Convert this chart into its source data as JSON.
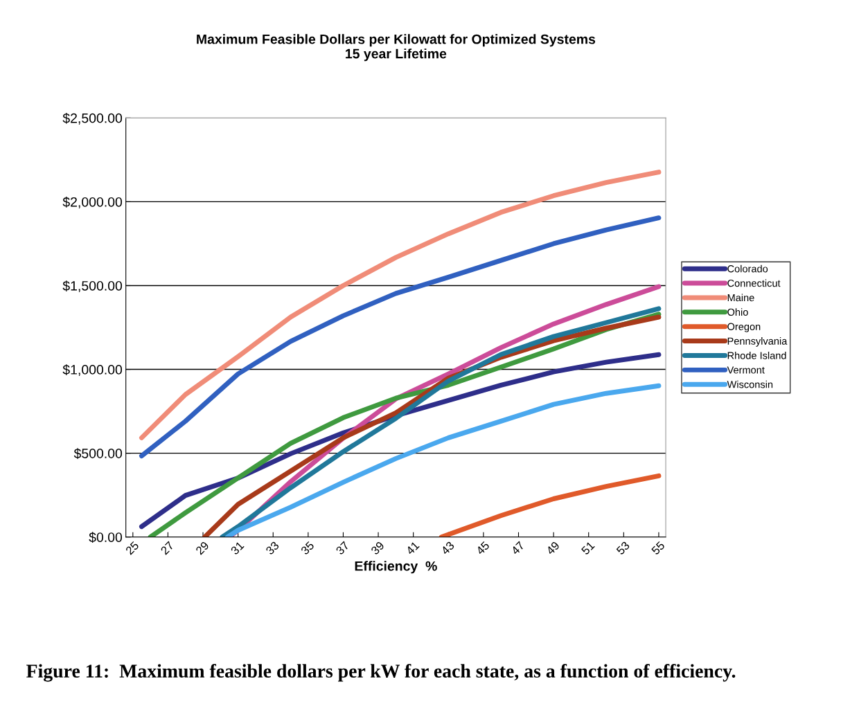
{
  "chart_data": {
    "type": "line",
    "title": "Maximum Feasible Dollars per Kilowatt for Optimized Systems\n15 year Lifetime",
    "xlabel": "Efficiency  %",
    "annotations": [
      "Figure 11:  Maximum feasible dollars per kW for each state, as a function of efficiency."
    ],
    "xlim": [
      24.6,
      55.4
    ],
    "xticks": [
      25,
      27,
      29,
      31,
      33,
      35,
      37,
      39,
      41,
      43,
      45,
      47,
      49,
      51,
      53,
      55
    ],
    "ylim": [
      0,
      2500
    ],
    "yticks": [
      {
        "value": 0,
        "label": "$0.00"
      },
      {
        "value": 500,
        "label": "$500.00"
      },
      {
        "value": 1000,
        "label": "$1,000.00"
      },
      {
        "value": 1500,
        "label": "$1,500.00"
      },
      {
        "value": 2000,
        "label": "$2,000.00"
      },
      {
        "value": 2500,
        "label": "$2,500.00"
      }
    ],
    "grid": "y",
    "legend": "right",
    "marker": "none",
    "line_style": "solid",
    "series": [
      {
        "name": "Colorado",
        "color": "#2e2e8a",
        "x": [
          25.5,
          28,
          31,
          34,
          37,
          40,
          43,
          46,
          49,
          52,
          55
        ],
        "values": [
          62,
          248,
          352,
          497,
          621,
          724,
          815,
          906,
          985,
          1043,
          1088
        ]
      },
      {
        "name": "Connecticut",
        "color": "#cc4c99",
        "x": [
          30.5,
          31,
          34,
          37,
          40,
          43,
          46,
          49,
          52,
          55
        ],
        "values": [
          0,
          40,
          330,
          590,
          824,
          973,
          1130,
          1271,
          1387,
          1494
        ]
      },
      {
        "name": "Maine",
        "color": "#f08c78",
        "x": [
          25.5,
          28,
          31,
          34,
          37,
          40,
          43,
          46,
          49,
          52,
          55
        ],
        "values": [
          592,
          850,
          1076,
          1312,
          1500,
          1668,
          1809,
          1937,
          2036,
          2115,
          2177
        ]
      },
      {
        "name": "Ohio",
        "color": "#3f9a3f",
        "x": [
          26,
          28,
          31,
          34,
          37,
          40,
          43,
          46,
          49,
          52,
          55
        ],
        "values": [
          0,
          145,
          352,
          559,
          712,
          828,
          906,
          1014,
          1122,
          1238,
          1329
        ]
      },
      {
        "name": "Oregon",
        "color": "#e05a2a",
        "x": [
          42.6,
          46,
          49,
          52,
          55
        ],
        "values": [
          0,
          128,
          228,
          302,
          365
        ]
      },
      {
        "name": "Pennsylvania",
        "color": "#a83a1a",
        "x": [
          29.1,
          31,
          34,
          37,
          40,
          43,
          46,
          49,
          52,
          55
        ],
        "values": [
          0,
          195,
          393,
          592,
          741,
          948,
          1072,
          1171,
          1246,
          1312
        ]
      },
      {
        "name": "Rhode Island",
        "color": "#20789a",
        "x": [
          30.1,
          31,
          34,
          37,
          40,
          43,
          46,
          49,
          52,
          55
        ],
        "values": [
          0,
          62,
          294,
          509,
          708,
          931,
          1089,
          1196,
          1279,
          1362
        ]
      },
      {
        "name": "Vermont",
        "color": "#3060c0",
        "x": [
          25.5,
          28,
          31,
          34,
          37,
          40,
          43,
          46,
          49,
          52,
          55
        ],
        "values": [
          484,
          691,
          973,
          1167,
          1320,
          1453,
          1550,
          1650,
          1750,
          1832,
          1904
        ]
      },
      {
        "name": "Wisconsin",
        "color": "#4aa8ee",
        "x": [
          30.4,
          31,
          34,
          37,
          40,
          43,
          46,
          49,
          52,
          55
        ],
        "values": [
          0,
          40,
          178,
          327,
          468,
          592,
          691,
          791,
          857,
          902
        ]
      }
    ]
  }
}
